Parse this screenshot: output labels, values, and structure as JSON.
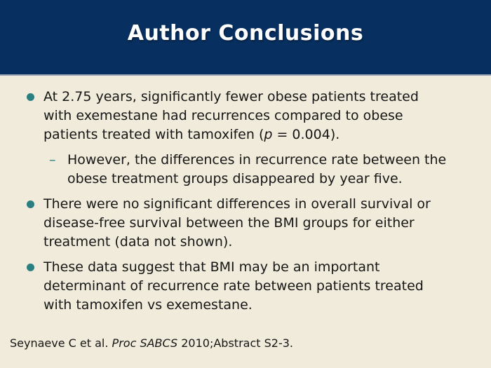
{
  "slide": {
    "title": "Author Conclusions",
    "colors": {
      "header_bg": "#072f5f",
      "header_divider": "#95a0b2",
      "body_bg": "#f0ebda",
      "bullet_teal": "#2a7f81",
      "title_text": "#ffffff",
      "body_text": "#161616"
    },
    "markers": {
      "sub_dash": "–"
    },
    "bullets": [
      {
        "level": 1,
        "segments": {
          "before_italic": "At 2.75 years, significantly fewer obese patients treated\nwith exemestane had recurrences compared to obese\npatients treated with tamoxifen (",
          "italic": "p",
          "after_italic": " = 0.004)."
        }
      },
      {
        "level": 2,
        "text": "However, the differences in recurrence rate between the\nobese treatment groups disappeared by year five."
      },
      {
        "level": 1,
        "text": "There were no significant differences in overall survival or\ndisease-free survival between the BMI groups for either\ntreatment (data not shown)."
      },
      {
        "level": 1,
        "text": "These data suggest that BMI may be an important\ndeterminant of recurrence rate between patients treated\nwith tamoxifen vs exemestane."
      }
    ],
    "footer": {
      "before_italic": "Seynaeve C et al. ",
      "italic": "Proc SABCS",
      "after_italic": " 2010;Abstract S2-3."
    }
  }
}
